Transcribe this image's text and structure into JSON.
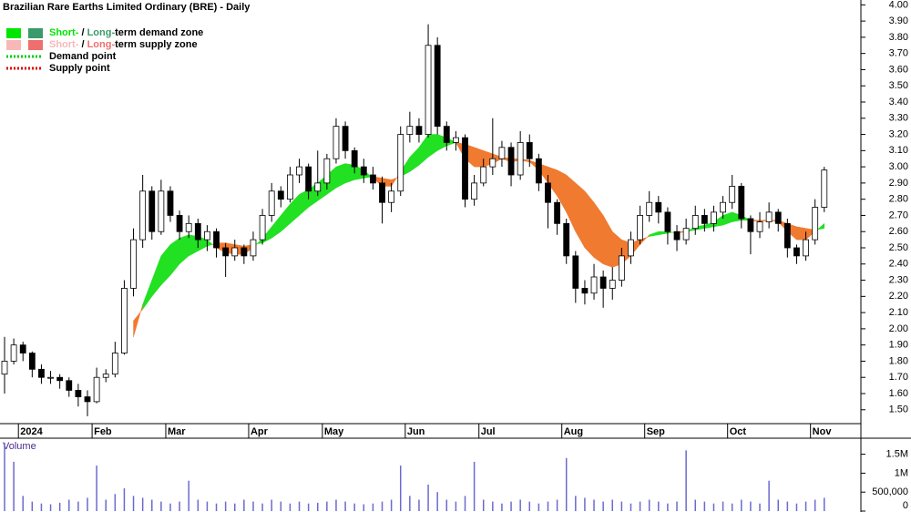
{
  "chart_data": [
    {
      "type": "candlestick",
      "title": "Brazilian Rare Earths Limited Ordinary (BRE) - Daily",
      "legend": [
        {
          "parts": [
            "Short-",
            " / ",
            "Long-",
            "term demand zone"
          ],
          "colors": [
            "#00e600",
            "#3a9a6a"
          ]
        },
        {
          "parts": [
            "Short-",
            " / ",
            "Long-",
            "term supply zone"
          ],
          "colors": [
            "#f8b8b8",
            "#ef6f6f"
          ]
        },
        {
          "parts": [
            "Demand point"
          ],
          "colors": [
            "#00cc00"
          ]
        },
        {
          "parts": [
            "Supply point"
          ],
          "colors": [
            "#dd0000"
          ]
        }
      ],
      "zone_colors": {
        "demand": "#22e022",
        "supply": "#f07a30"
      },
      "categories": [
        null,
        null,
        "2024",
        null,
        null,
        null,
        null,
        null,
        null,
        null,
        "Feb",
        null,
        null,
        null,
        null,
        null,
        null,
        null,
        "Mar",
        null,
        null,
        null,
        null,
        null,
        null,
        null,
        null,
        "Apr",
        null,
        null,
        null,
        null,
        null,
        null,
        null,
        "May",
        null,
        null,
        null,
        null,
        null,
        null,
        null,
        null,
        "Jun",
        null,
        null,
        null,
        null,
        null,
        null,
        null,
        "Jul",
        null,
        null,
        null,
        null,
        null,
        null,
        null,
        null,
        "Aug",
        null,
        null,
        null,
        null,
        null,
        null,
        null,
        null,
        "Sep",
        null,
        null,
        null,
        null,
        null,
        null,
        null,
        null,
        "Oct",
        null,
        null,
        null,
        null,
        null,
        null,
        null,
        null,
        "Nov",
        null
      ],
      "ohlc": [
        [
          1.72,
          1.95,
          1.6,
          1.8
        ],
        [
          1.8,
          1.94,
          1.78,
          1.9
        ],
        [
          1.9,
          1.92,
          1.8,
          1.85
        ],
        [
          1.85,
          1.86,
          1.7,
          1.75
        ],
        [
          1.75,
          1.78,
          1.66,
          1.7
        ],
        [
          1.7,
          1.74,
          1.66,
          1.7
        ],
        [
          1.7,
          1.72,
          1.63,
          1.68
        ],
        [
          1.68,
          1.7,
          1.58,
          1.62
        ],
        [
          1.62,
          1.66,
          1.52,
          1.58
        ],
        [
          1.58,
          1.62,
          1.46,
          1.55
        ],
        [
          1.55,
          1.76,
          1.54,
          1.7
        ],
        [
          1.7,
          1.75,
          1.67,
          1.72
        ],
        [
          1.72,
          1.92,
          1.7,
          1.85
        ],
        [
          1.85,
          2.3,
          1.84,
          2.25
        ],
        [
          2.25,
          2.62,
          2.2,
          2.55
        ],
        [
          2.55,
          2.95,
          2.5,
          2.85
        ],
        [
          2.85,
          2.88,
          2.55,
          2.6
        ],
        [
          2.6,
          2.92,
          2.58,
          2.85
        ],
        [
          2.85,
          2.88,
          2.66,
          2.7
        ],
        [
          2.7,
          2.73,
          2.55,
          2.6
        ],
        [
          2.6,
          2.7,
          2.56,
          2.65
        ],
        [
          2.65,
          2.68,
          2.5,
          2.55
        ],
        [
          2.55,
          2.64,
          2.48,
          2.6
        ],
        [
          2.6,
          2.62,
          2.44,
          2.5
        ],
        [
          2.5,
          2.53,
          2.32,
          2.45
        ],
        [
          2.45,
          2.55,
          2.42,
          2.5
        ],
        [
          2.5,
          2.52,
          2.4,
          2.45
        ],
        [
          2.45,
          2.6,
          2.42,
          2.55
        ],
        [
          2.55,
          2.74,
          2.52,
          2.7
        ],
        [
          2.7,
          2.9,
          2.66,
          2.85
        ],
        [
          2.85,
          2.88,
          2.75,
          2.8
        ],
        [
          2.8,
          3.0,
          2.78,
          2.95
        ],
        [
          2.95,
          3.05,
          2.9,
          3.0
        ],
        [
          3.0,
          3.02,
          2.8,
          2.85
        ],
        [
          2.85,
          3.1,
          2.82,
          2.9
        ],
        [
          2.9,
          3.08,
          2.86,
          3.05
        ],
        [
          3.05,
          3.3,
          3.02,
          3.25
        ],
        [
          3.25,
          3.28,
          3.05,
          3.1
        ],
        [
          3.1,
          3.12,
          2.96,
          3.0
        ],
        [
          3.0,
          3.05,
          2.9,
          2.95
        ],
        [
          2.95,
          3.0,
          2.86,
          2.9
        ],
        [
          2.9,
          2.94,
          2.65,
          2.78
        ],
        [
          2.78,
          2.9,
          2.72,
          2.85
        ],
        [
          2.85,
          3.25,
          2.82,
          3.2
        ],
        [
          3.2,
          3.34,
          3.15,
          3.25
        ],
        [
          3.25,
          3.3,
          3.15,
          3.2
        ],
        [
          3.2,
          3.88,
          3.18,
          3.75
        ],
        [
          3.75,
          3.8,
          3.2,
          3.25
        ],
        [
          3.25,
          3.28,
          3.1,
          3.15
        ],
        [
          3.15,
          3.22,
          3.1,
          3.18
        ],
        [
          3.18,
          3.2,
          2.75,
          2.8
        ],
        [
          2.8,
          2.95,
          2.76,
          2.9
        ],
        [
          2.9,
          3.05,
          2.88,
          3.0
        ],
        [
          3.0,
          3.3,
          2.95,
          3.05
        ],
        [
          3.05,
          3.16,
          3.0,
          3.12
        ],
        [
          3.12,
          3.15,
          2.88,
          2.95
        ],
        [
          2.95,
          3.22,
          2.92,
          3.15
        ],
        [
          3.15,
          3.2,
          3.0,
          3.05
        ],
        [
          3.05,
          3.08,
          2.85,
          2.9
        ],
        [
          2.9,
          2.95,
          2.62,
          2.78
        ],
        [
          2.78,
          2.8,
          2.58,
          2.65
        ],
        [
          2.65,
          2.68,
          2.4,
          2.45
        ],
        [
          2.45,
          2.48,
          2.16,
          2.25
        ],
        [
          2.25,
          2.3,
          2.15,
          2.22
        ],
        [
          2.22,
          2.4,
          2.18,
          2.32
        ],
        [
          2.32,
          2.36,
          2.13,
          2.25
        ],
        [
          2.25,
          2.38,
          2.18,
          2.3
        ],
        [
          2.3,
          2.5,
          2.26,
          2.45
        ],
        [
          2.45,
          2.6,
          2.4,
          2.55
        ],
        [
          2.55,
          2.76,
          2.52,
          2.7
        ],
        [
          2.7,
          2.85,
          2.66,
          2.78
        ],
        [
          2.78,
          2.82,
          2.65,
          2.72
        ],
        [
          2.72,
          2.75,
          2.52,
          2.6
        ],
        [
          2.6,
          2.64,
          2.48,
          2.55
        ],
        [
          2.55,
          2.68,
          2.52,
          2.62
        ],
        [
          2.62,
          2.76,
          2.58,
          2.7
        ],
        [
          2.7,
          2.74,
          2.6,
          2.65
        ],
        [
          2.65,
          2.76,
          2.6,
          2.72
        ],
        [
          2.72,
          2.82,
          2.68,
          2.78
        ],
        [
          2.78,
          2.95,
          2.74,
          2.88
        ],
        [
          2.88,
          2.9,
          2.62,
          2.68
        ],
        [
          2.68,
          2.7,
          2.46,
          2.6
        ],
        [
          2.6,
          2.72,
          2.56,
          2.66
        ],
        [
          2.66,
          2.78,
          2.62,
          2.72
        ],
        [
          2.72,
          2.74,
          2.6,
          2.65
        ],
        [
          2.65,
          2.68,
          2.44,
          2.5
        ],
        [
          2.5,
          2.52,
          2.4,
          2.45
        ],
        [
          2.45,
          2.6,
          2.42,
          2.55
        ],
        [
          2.55,
          2.8,
          2.52,
          2.75
        ],
        [
          2.75,
          3.0,
          2.72,
          2.98
        ]
      ],
      "short_term": [
        null,
        null,
        null,
        null,
        null,
        null,
        null,
        null,
        null,
        null,
        null,
        null,
        null,
        null,
        1.95,
        2.15,
        2.3,
        2.45,
        2.52,
        2.56,
        2.58,
        2.57,
        2.55,
        2.5,
        2.47,
        2.46,
        2.46,
        2.5,
        2.56,
        2.63,
        2.7,
        2.77,
        2.83,
        2.86,
        2.9,
        2.95,
        3.0,
        3.02,
        3.01,
        2.98,
        2.93,
        2.88,
        2.88,
        2.97,
        3.06,
        3.12,
        3.2,
        3.2,
        3.18,
        3.15,
        3.05,
        3.0,
        3.0,
        3.02,
        3.05,
        3.03,
        3.04,
        3.03,
        2.98,
        2.9,
        2.82,
        2.72,
        2.6,
        2.5,
        2.44,
        2.4,
        2.38,
        2.4,
        2.45,
        2.52,
        2.58,
        2.6,
        2.6,
        2.59,
        2.6,
        2.63,
        2.64,
        2.66,
        2.7,
        2.72,
        2.7,
        2.67,
        2.66,
        2.67,
        2.66,
        2.6,
        2.55,
        2.55,
        2.6,
        2.65
      ],
      "long_term": [
        null,
        null,
        null,
        null,
        null,
        null,
        null,
        null,
        null,
        null,
        null,
        null,
        null,
        null,
        2.05,
        2.12,
        2.2,
        2.27,
        2.33,
        2.4,
        2.45,
        2.48,
        2.51,
        2.53,
        2.53,
        2.52,
        2.51,
        2.52,
        2.53,
        2.56,
        2.6,
        2.65,
        2.7,
        2.75,
        2.79,
        2.83,
        2.87,
        2.9,
        2.92,
        2.93,
        2.94,
        2.93,
        2.92,
        2.94,
        2.97,
        3.01,
        3.06,
        3.1,
        3.13,
        3.15,
        3.14,
        3.12,
        3.1,
        3.08,
        3.06,
        3.05,
        3.05,
        3.04,
        3.02,
        3.0,
        2.98,
        2.95,
        2.9,
        2.85,
        2.78,
        2.7,
        2.6,
        2.55,
        2.53,
        2.55,
        2.57,
        2.58,
        2.59,
        2.6,
        2.6,
        2.61,
        2.62,
        2.63,
        2.64,
        2.66,
        2.67,
        2.67,
        2.67,
        2.67,
        2.67,
        2.65,
        2.63,
        2.62,
        2.61,
        2.62
      ],
      "ylim": [
        1.33,
        4.03
      ],
      "yticks": [
        {
          "value": 1.5,
          "label": "1.50"
        },
        {
          "value": 1.6,
          "label": "1.60"
        },
        {
          "value": 1.7,
          "label": "1.70"
        },
        {
          "value": 1.8,
          "label": "1.80"
        },
        {
          "value": 1.9,
          "label": "1.90"
        },
        {
          "value": 2.0,
          "label": "2.00"
        },
        {
          "value": 2.1,
          "label": "2.10"
        },
        {
          "value": 2.2,
          "label": "2.20"
        },
        {
          "value": 2.3,
          "label": "2.30"
        },
        {
          "value": 2.4,
          "label": "2.40"
        },
        {
          "value": 2.5,
          "label": "2.50"
        },
        {
          "value": 2.6,
          "label": "2.60"
        },
        {
          "value": 2.7,
          "label": "2.70"
        },
        {
          "value": 2.8,
          "label": "2.80"
        },
        {
          "value": 2.9,
          "label": "2.90"
        },
        {
          "value": 3.0,
          "label": "3.00"
        },
        {
          "value": 3.1,
          "label": "3.10"
        },
        {
          "value": 3.2,
          "label": "3.20"
        },
        {
          "value": 3.3,
          "label": "3.30"
        },
        {
          "value": 3.4,
          "label": "3.40"
        },
        {
          "value": 3.5,
          "label": "3.50"
        },
        {
          "value": 3.6,
          "label": "3.60"
        },
        {
          "value": 3.7,
          "label": "3.70"
        },
        {
          "value": 3.8,
          "label": "3.80"
        },
        {
          "value": 3.9,
          "label": "3.90"
        },
        {
          "value": 4.0,
          "label": "4.00"
        }
      ]
    },
    {
      "type": "bar",
      "title": "Volume",
      "color": "#6a6ad0",
      "values": [
        1800000,
        1300000,
        400000,
        250000,
        200000,
        180000,
        220000,
        300000,
        250000,
        350000,
        1200000,
        300000,
        450000,
        600000,
        400000,
        350000,
        300000,
        250000,
        200000,
        250000,
        800000,
        300000,
        250000,
        200000,
        250000,
        200000,
        300000,
        250000,
        200000,
        300000,
        250000,
        200000,
        250000,
        200000,
        220000,
        250000,
        300000,
        250000,
        200000,
        180000,
        200000,
        250000,
        300000,
        1200000,
        400000,
        300000,
        700000,
        500000,
        300000,
        250000,
        400000,
        1300000,
        300000,
        250000,
        200000,
        250000,
        300000,
        250000,
        200000,
        250000,
        300000,
        1400000,
        400000,
        350000,
        300000,
        250000,
        300000,
        250000,
        200000,
        250000,
        300000,
        250000,
        200000,
        250000,
        1600000,
        300000,
        250000,
        200000,
        250000,
        200000,
        300000,
        250000,
        200000,
        800000,
        300000,
        250000,
        200000,
        250000,
        300000,
        350000
      ],
      "ylim": [
        0,
        1850000
      ],
      "yticks": [
        0,
        {
          "value": 500000,
          "label": "500,000"
        },
        {
          "value": 1000000,
          "label": "1M"
        },
        {
          "value": 1500000,
          "label": "1.5M"
        }
      ]
    }
  ]
}
